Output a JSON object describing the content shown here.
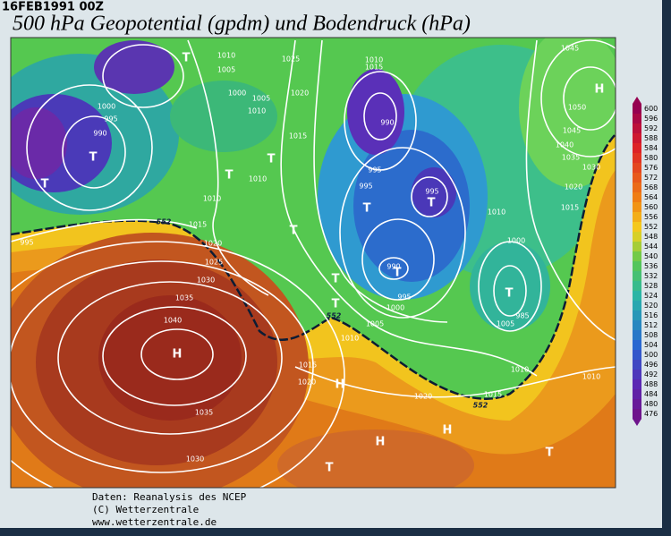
{
  "header": {
    "timestamp": "16FEB1991 00Z",
    "title": "500 hPa Geopotential (gpdm) und Bodendruck (hPa)"
  },
  "map": {
    "isobar_labels": [
      "1010",
      "1005",
      "1025",
      "1010",
      "1015",
      "1045",
      "1000",
      "995",
      "990",
      "1000",
      "1005",
      "1010",
      "1020",
      "1015",
      "990",
      "1050",
      "1045",
      "1040",
      "1035",
      "1030",
      "995",
      "995",
      "995",
      "1020",
      "1015",
      "1010",
      "1010",
      "1010",
      "1015",
      "995",
      "1020",
      "1000",
      "1025",
      "990",
      "1030",
      "995",
      "1000",
      "985",
      "1035",
      "1005",
      "1005",
      "1040",
      "1010",
      "1015",
      "1010",
      "1010",
      "1020",
      "1020",
      "1015",
      "1035",
      "1030"
    ],
    "pressure_centers": [
      "T",
      "H",
      "T",
      "T",
      "T",
      "T",
      "T",
      "T",
      "T",
      "T",
      "T",
      "T",
      "T",
      "H",
      "H",
      "H",
      "H",
      "T",
      "T"
    ],
    "contour_labels": [
      "552",
      "552",
      "552"
    ]
  },
  "colorbar": {
    "labels": [
      600,
      596,
      592,
      588,
      584,
      580,
      576,
      572,
      568,
      564,
      560,
      556,
      552,
      548,
      544,
      540,
      536,
      532,
      528,
      524,
      520,
      516,
      512,
      508,
      504,
      500,
      496,
      492,
      488,
      484,
      480,
      476
    ]
  },
  "footer": {
    "lines": [
      "Daten: Reanalysis des NCEP",
      "(C) Wetterzentrale",
      "www.wetterzentrale.de"
    ]
  }
}
